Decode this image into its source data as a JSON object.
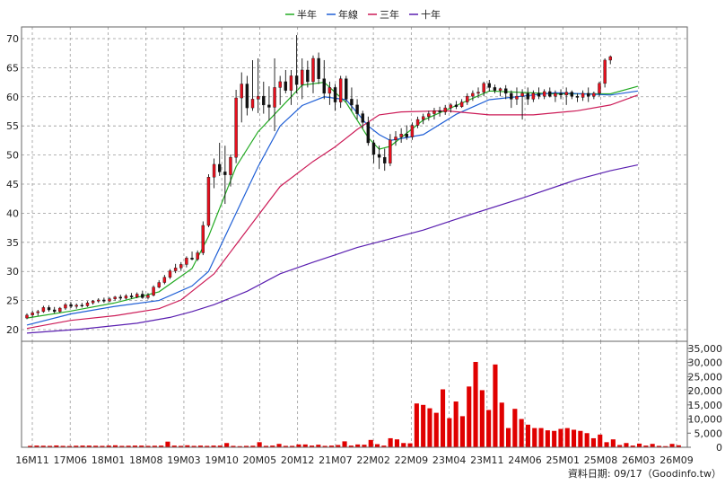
{
  "legend": [
    {
      "label": "半年",
      "color": "#22aa22"
    },
    {
      "label": "年線",
      "color": "#1f5fd6"
    },
    {
      "label": "三年",
      "color": "#cc1b57"
    },
    {
      "label": "十年",
      "color": "#5a1fb0"
    }
  ],
  "footer": "資料日期: 09/17（Goodinfo.tw）",
  "chart_data": [
    {
      "type": "line",
      "title": "",
      "price_axis": {
        "ylim": [
          18,
          72
        ],
        "ticks": [
          20,
          25,
          30,
          35,
          40,
          45,
          50,
          55,
          60,
          65,
          70
        ]
      },
      "x_axis": {
        "range": [
          0,
          119
        ],
        "tick_labels": [
          "16M11",
          "17M06",
          "18M01",
          "18M08",
          "19M03",
          "19M10",
          "20M05",
          "20M12",
          "21M07",
          "22M02",
          "22M09",
          "23M04",
          "23M11",
          "24M06",
          "25M01",
          "25M08",
          "26M03",
          "26M09"
        ]
      },
      "grid": true,
      "candles": {
        "up_color": "#e8101e",
        "down_color": "#111111",
        "values": [
          [
            22.0,
            22.8,
            21.8,
            22.5
          ],
          [
            22.5,
            23.3,
            22.1,
            22.9
          ],
          [
            22.9,
            23.4,
            22.4,
            23.1
          ],
          [
            23.1,
            24.1,
            22.9,
            23.8
          ],
          [
            23.8,
            24.2,
            23.1,
            23.4
          ],
          [
            23.4,
            23.9,
            22.8,
            23.1
          ],
          [
            23.1,
            23.9,
            22.9,
            23.7
          ],
          [
            23.7,
            24.6,
            23.4,
            24.3
          ],
          [
            24.3,
            24.7,
            23.7,
            24.0
          ],
          [
            24.0,
            24.5,
            23.6,
            24.2
          ],
          [
            24.2,
            24.6,
            23.8,
            24.1
          ],
          [
            24.1,
            24.9,
            23.9,
            24.6
          ],
          [
            24.6,
            25.1,
            24.3,
            24.9
          ],
          [
            24.9,
            25.4,
            24.6,
            25.1
          ],
          [
            25.1,
            25.5,
            24.6,
            24.9
          ],
          [
            24.9,
            25.6,
            24.7,
            25.3
          ],
          [
            25.3,
            25.8,
            25.0,
            25.6
          ],
          [
            25.6,
            26.0,
            25.1,
            25.4
          ],
          [
            25.4,
            26.1,
            25.2,
            25.8
          ],
          [
            25.8,
            26.3,
            25.3,
            25.6
          ],
          [
            25.6,
            26.4,
            25.4,
            26.1
          ],
          [
            26.1,
            26.7,
            25.3,
            25.5
          ],
          [
            25.5,
            26.3,
            25.2,
            25.9
          ],
          [
            25.9,
            27.6,
            25.7,
            27.3
          ],
          [
            27.3,
            28.5,
            27.1,
            28.1
          ],
          [
            28.1,
            29.4,
            27.8,
            29.0
          ],
          [
            29.0,
            30.4,
            28.7,
            30.1
          ],
          [
            30.1,
            31.3,
            29.7,
            30.6
          ],
          [
            30.6,
            31.6,
            30.1,
            31.2
          ],
          [
            31.2,
            32.6,
            30.7,
            32.3
          ],
          [
            32.3,
            33.4,
            31.9,
            32.1
          ],
          [
            32.1,
            33.6,
            31.8,
            33.2
          ],
          [
            33.2,
            38.6,
            32.8,
            37.9
          ],
          [
            37.9,
            46.7,
            37.6,
            46.2
          ],
          [
            46.2,
            49.4,
            44.3,
            48.4
          ],
          [
            48.4,
            52.1,
            46.4,
            47.1
          ],
          [
            47.1,
            51.6,
            41.6,
            46.6
          ],
          [
            46.6,
            50.1,
            44.6,
            49.6
          ],
          [
            49.6,
            61.2,
            48.6,
            59.8
          ],
          [
            59.8,
            64.2,
            55.6,
            62.2
          ],
          [
            62.2,
            63.6,
            56.8,
            58.1
          ],
          [
            58.1,
            66.3,
            57.6,
            59.6
          ],
          [
            59.6,
            66.6,
            57.2,
            60.1
          ],
          [
            60.1,
            62.6,
            57.1,
            58.6
          ],
          [
            58.6,
            61.8,
            55.9,
            58.2
          ],
          [
            58.2,
            66.6,
            54.1,
            61.6
          ],
          [
            61.6,
            63.6,
            58.6,
            62.6
          ],
          [
            62.6,
            64.6,
            60.6,
            61.1
          ],
          [
            61.1,
            64.6,
            58.6,
            63.6
          ],
          [
            63.6,
            70.6,
            60.6,
            62.1
          ],
          [
            62.1,
            66.6,
            59.6,
            64.6
          ],
          [
            64.6,
            66.2,
            61.6,
            62.6
          ],
          [
            62.6,
            67.1,
            60.6,
            66.6
          ],
          [
            66.6,
            67.6,
            62.2,
            63.1
          ],
          [
            63.1,
            66.3,
            59.6,
            60.6
          ],
          [
            60.6,
            62.6,
            58.6,
            61.6
          ],
          [
            61.6,
            62.2,
            57.6,
            59.1
          ],
          [
            59.1,
            63.6,
            58.1,
            63.1
          ],
          [
            63.1,
            63.6,
            59.1,
            59.6
          ],
          [
            59.6,
            61.6,
            57.6,
            58.6
          ],
          [
            58.6,
            59.6,
            56.1,
            57.1
          ],
          [
            57.1,
            57.6,
            54.6,
            55.6
          ],
          [
            55.6,
            56.6,
            51.6,
            52.1
          ],
          [
            52.1,
            52.6,
            48.6,
            50.1
          ],
          [
            50.1,
            51.6,
            47.6,
            49.6
          ],
          [
            49.6,
            51.1,
            47.3,
            48.6
          ],
          [
            48.6,
            53.6,
            48.1,
            52.6
          ],
          [
            52.6,
            54.1,
            51.6,
            53.1
          ],
          [
            53.1,
            54.6,
            52.1,
            53.6
          ],
          [
            53.6,
            55.1,
            52.6,
            53.1
          ],
          [
            53.1,
            55.6,
            52.6,
            55.1
          ],
          [
            55.1,
            56.6,
            54.6,
            56.1
          ],
          [
            56.1,
            57.1,
            55.3,
            56.6
          ],
          [
            56.6,
            57.6,
            55.9,
            57.1
          ],
          [
            57.1,
            58.1,
            56.1,
            57.6
          ],
          [
            57.6,
            58.3,
            56.6,
            57.4
          ],
          [
            57.4,
            58.6,
            56.9,
            58.1
          ],
          [
            58.1,
            58.9,
            57.3,
            58.6
          ],
          [
            58.6,
            59.3,
            57.9,
            58.3
          ],
          [
            58.3,
            59.6,
            58.1,
            59.1
          ],
          [
            59.1,
            60.6,
            58.6,
            60.1
          ],
          [
            60.1,
            61.1,
            59.3,
            60.6
          ],
          [
            60.6,
            61.6,
            59.8,
            60.8
          ],
          [
            60.8,
            62.6,
            60.1,
            62.3
          ],
          [
            62.3,
            62.9,
            60.9,
            61.6
          ],
          [
            61.6,
            62.1,
            60.6,
            61.1
          ],
          [
            61.1,
            61.6,
            60.1,
            61.4
          ],
          [
            61.4,
            62.0,
            59.6,
            60.6
          ],
          [
            60.6,
            61.1,
            58.1,
            59.6
          ],
          [
            59.6,
            61.6,
            58.6,
            60.1
          ],
          [
            60.1,
            61.3,
            56.1,
            60.6
          ],
          [
            60.6,
            61.6,
            58.6,
            59.6
          ],
          [
            59.6,
            61.1,
            59.1,
            60.6
          ],
          [
            60.6,
            61.6,
            59.6,
            60.1
          ],
          [
            60.1,
            61.3,
            59.6,
            60.9
          ],
          [
            60.9,
            61.6,
            59.9,
            60.1
          ],
          [
            60.1,
            61.1,
            59.1,
            60.6
          ],
          [
            60.6,
            61.3,
            59.6,
            60.3
          ],
          [
            60.3,
            61.6,
            58.6,
            60.8
          ],
          [
            60.8,
            61.1,
            59.6,
            60.1
          ],
          [
            60.1,
            60.6,
            59.1,
            59.9
          ],
          [
            59.9,
            61.1,
            59.3,
            60.6
          ],
          [
            60.6,
            61.6,
            59.1,
            60.1
          ],
          [
            60.1,
            60.9,
            59.6,
            60.6
          ],
          [
            60.6,
            62.6,
            60.1,
            62.3
          ],
          [
            62.3,
            66.6,
            61.6,
            66.3
          ],
          [
            66.3,
            67.1,
            65.6,
            66.9
          ]
        ]
      },
      "series": [
        {
          "name": "半年",
          "color": "#22aa22",
          "x": [
            0,
            8,
            16,
            24,
            30,
            33,
            38,
            42,
            46,
            50,
            54,
            58,
            62,
            64,
            66,
            72,
            78,
            84,
            96,
            106,
            111
          ],
          "values": [
            22,
            23.2,
            24.6,
            26.5,
            30.5,
            36,
            48,
            54,
            58,
            62,
            62.5,
            59,
            53,
            51,
            51.5,
            56,
            58.5,
            61,
            60.5,
            60.5,
            61.8
          ]
        },
        {
          "name": "年線",
          "color": "#1f5fd6",
          "x": [
            0,
            8,
            16,
            24,
            30,
            33,
            38,
            42,
            46,
            50,
            54,
            58,
            62,
            64,
            66,
            72,
            78,
            84,
            96,
            106,
            111
          ],
          "values": [
            20.8,
            22.7,
            24.0,
            25.0,
            27.5,
            30,
            40,
            48,
            55,
            58.5,
            60,
            59.5,
            55,
            53.5,
            52.5,
            53.5,
            57,
            59.5,
            60.7,
            60.3,
            61
          ]
        },
        {
          "name": "三年",
          "color": "#cc1b57",
          "x": [
            0,
            8,
            16,
            24,
            28,
            30,
            34,
            38,
            42,
            46,
            52,
            56,
            60,
            64,
            68,
            76,
            84,
            92,
            100,
            106,
            111
          ],
          "values": [
            20.2,
            21.6,
            22.4,
            23.6,
            25.1,
            26.6,
            29.6,
            34.6,
            39.6,
            44.6,
            48.9,
            51.4,
            54.4,
            56.9,
            57.4,
            57.6,
            56.9,
            56.9,
            57.6,
            58.6,
            60.3
          ]
        },
        {
          "name": "十年",
          "color": "#5a1fb0",
          "x": [
            0,
            10,
            20,
            26,
            30,
            34,
            40,
            46,
            52,
            60,
            66,
            72,
            80,
            90,
            100,
            106,
            111
          ],
          "values": [
            19.4,
            20.1,
            21.1,
            22.1,
            23.1,
            24.3,
            26.6,
            29.6,
            31.6,
            34.1,
            35.6,
            37.1,
            39.6,
            42.6,
            45.8,
            47.3,
            48.3
          ]
        }
      ]
    },
    {
      "type": "bar",
      "title": "",
      "ylim": [
        0,
        37500
      ],
      "ticks": [
        0,
        5000,
        10000,
        15000,
        20000,
        25000,
        30000,
        35000
      ],
      "tick_labels": [
        "0",
        "5,000",
        "10,000",
        "15,000",
        "20,000",
        "25,000",
        "30,000",
        "35,000"
      ],
      "bar_color": "#e00000",
      "values": [
        500,
        600,
        550,
        500,
        650,
        500,
        450,
        550,
        600,
        600,
        550,
        500,
        600,
        700,
        500,
        550,
        600,
        600,
        500,
        550,
        600,
        2000,
        600,
        500,
        700,
        500,
        600,
        500,
        600,
        600,
        1500,
        500,
        400,
        500,
        550,
        1800,
        500,
        600,
        1200,
        500,
        500,
        1000,
        1000,
        600,
        900,
        500,
        600,
        800,
        2100,
        600,
        1000,
        900,
        2600,
        1100,
        600,
        3200,
        2800,
        1500,
        1400,
        15500,
        15000,
        13800,
        12200,
        20500,
        10300,
        16200,
        11000,
        21500,
        30200,
        20200,
        13200,
        29300,
        15800,
        6800,
        13600,
        10000,
        8000,
        6800,
        6800,
        6000,
        5800,
        6500,
        6800,
        6200,
        5800,
        5000,
        3200,
        4500,
        1800,
        2800,
        800,
        1500,
        600,
        1300,
        600,
        1200,
        500,
        400,
        1200,
        700
      ]
    }
  ]
}
